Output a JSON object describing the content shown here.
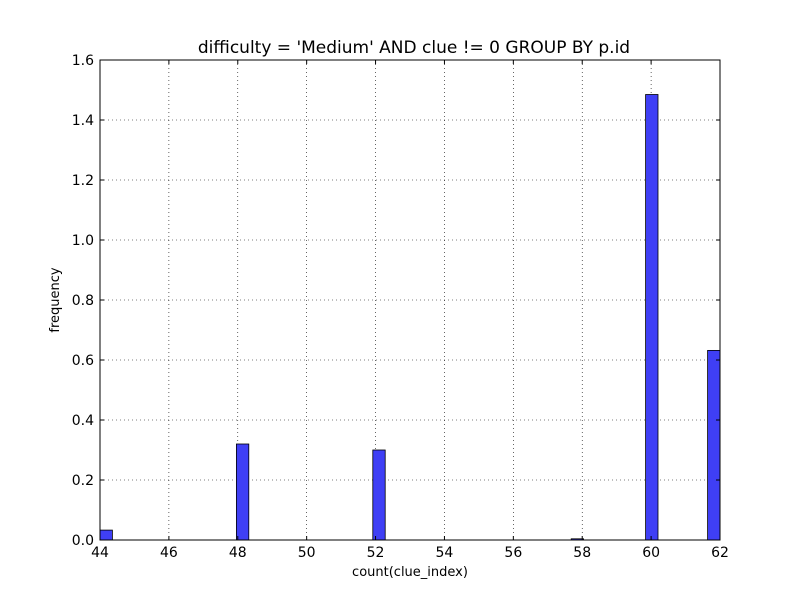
{
  "chart_data": {
    "type": "bar",
    "title": "difficulty = 'Medium' AND clue != 0 GROUP BY p.id",
    "xlabel": "count(clue_index)",
    "ylabel": "frequency",
    "xlim": [
      44,
      62
    ],
    "ylim": [
      0,
      1.6
    ],
    "xticks": [
      44,
      46,
      48,
      50,
      52,
      54,
      56,
      58,
      60,
      62
    ],
    "yticks": [
      0.0,
      0.2,
      0.4,
      0.6,
      0.8,
      1.0,
      1.2,
      1.4,
      1.6
    ],
    "ytick_labels": [
      "0.0",
      "0.2",
      "0.4",
      "0.6",
      "0.8",
      "1.0",
      "1.2",
      "1.4",
      "1.6"
    ],
    "grid": true,
    "bin_width": 0.36,
    "bars": [
      {
        "x0": 44.0,
        "value": 0.033
      },
      {
        "x0": 47.96,
        "value": 0.32
      },
      {
        "x0": 51.92,
        "value": 0.3
      },
      {
        "x0": 57.68,
        "value": 0.004
      },
      {
        "x0": 59.84,
        "value": 1.485
      },
      {
        "x0": 61.64,
        "value": 0.632
      }
    ],
    "bar_color": "#3f3ff5",
    "bar_edge_color": "#000000"
  }
}
